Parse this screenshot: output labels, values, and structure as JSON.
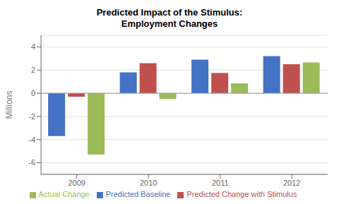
{
  "chart_data": {
    "type": "bar",
    "title": "Predicted Impact of the Stimulus:\nEmployment Changes",
    "ylabel": "Millions",
    "categories": [
      "2009",
      "2010",
      "2011",
      "2012"
    ],
    "series": [
      {
        "name": "Predicted Baseline",
        "color": "#4472C4",
        "values": [
          -3.7,
          1.8,
          2.9,
          3.2
        ]
      },
      {
        "name": "Predicted Change with Stimulus",
        "color": "#C0504D",
        "values": [
          -0.3,
          2.6,
          1.75,
          2.5
        ]
      },
      {
        "name": "Actual Change",
        "color": "#9BBB59",
        "values": [
          -5.3,
          -0.5,
          0.85,
          2.65
        ]
      }
    ],
    "ylim": [
      -7,
      5
    ],
    "yticks": [
      -6,
      -4,
      -2,
      0,
      2,
      4
    ],
    "grid": true,
    "legend": "bottom"
  }
}
